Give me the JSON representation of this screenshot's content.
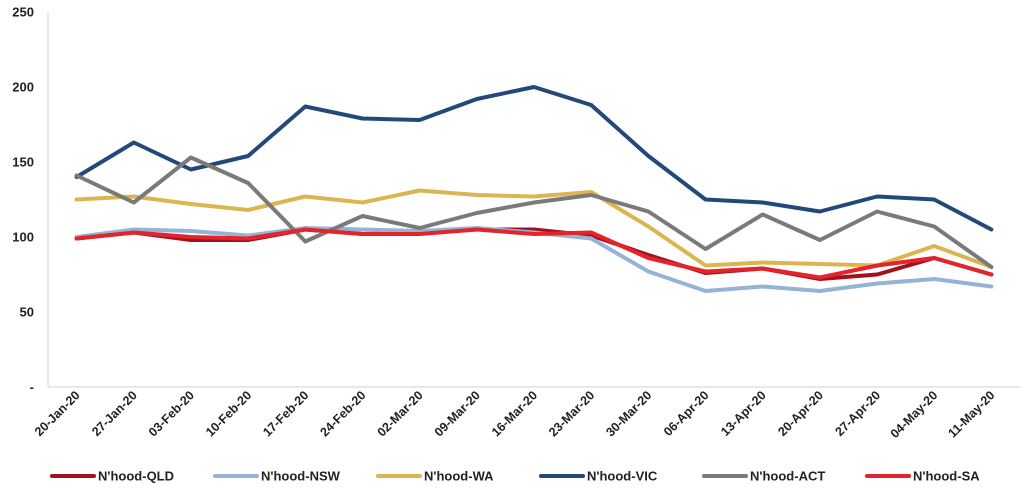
{
  "chart_data": {
    "type": "line",
    "title": "",
    "xlabel": "",
    "ylabel": "",
    "ylim": [
      0,
      250
    ],
    "y_ticks": [
      "-",
      "50",
      "100",
      "150",
      "200",
      "250"
    ],
    "grid": false,
    "legend_position": "bottom",
    "categories": [
      "20-Jan-20",
      "27-Jan-20",
      "03-Feb-20",
      "10-Feb-20",
      "17-Feb-20",
      "24-Feb-20",
      "02-Mar-20",
      "09-Mar-20",
      "16-Mar-20",
      "23-Mar-20",
      "30-Mar-20",
      "06-Apr-20",
      "13-Apr-20",
      "20-Apr-20",
      "27-Apr-20",
      "04-May-20",
      "11-May-20"
    ],
    "series": [
      {
        "name": "N'hood-QLD",
        "color": "#a3121c",
        "values": [
          99,
          103,
          98,
          98,
          105,
          102,
          103,
          105,
          105,
          101,
          88,
          76,
          79,
          72,
          75,
          86,
          75
        ]
      },
      {
        "name": "N'hood-NSW",
        "color": "#95b3d7",
        "values": [
          100,
          105,
          104,
          101,
          106,
          105,
          104,
          106,
          103,
          99,
          77,
          64,
          67,
          64,
          69,
          72,
          67
        ]
      },
      {
        "name": "N'hood-WA",
        "color": "#dbb550",
        "values": [
          125,
          127,
          122,
          118,
          127,
          123,
          131,
          128,
          127,
          130,
          107,
          81,
          83,
          82,
          81,
          94,
          80
        ]
      },
      {
        "name": "N'hood-VIC",
        "color": "#22497a",
        "values": [
          140,
          163,
          145,
          154,
          187,
          179,
          178,
          192,
          200,
          188,
          154,
          125,
          123,
          117,
          127,
          125,
          105
        ]
      },
      {
        "name": "N'hood-ACT",
        "color": "#7a7a7a",
        "values": [
          141,
          123,
          153,
          136,
          97,
          114,
          106,
          116,
          123,
          128,
          117,
          92,
          115,
          98,
          117,
          107,
          80
        ]
      },
      {
        "name": "N'hood-SA",
        "color": "#e3242b",
        "values": [
          99,
          103,
          100,
          99,
          105,
          102,
          102,
          105,
          102,
          103,
          86,
          77,
          79,
          73,
          81,
          86,
          75
        ]
      }
    ]
  }
}
